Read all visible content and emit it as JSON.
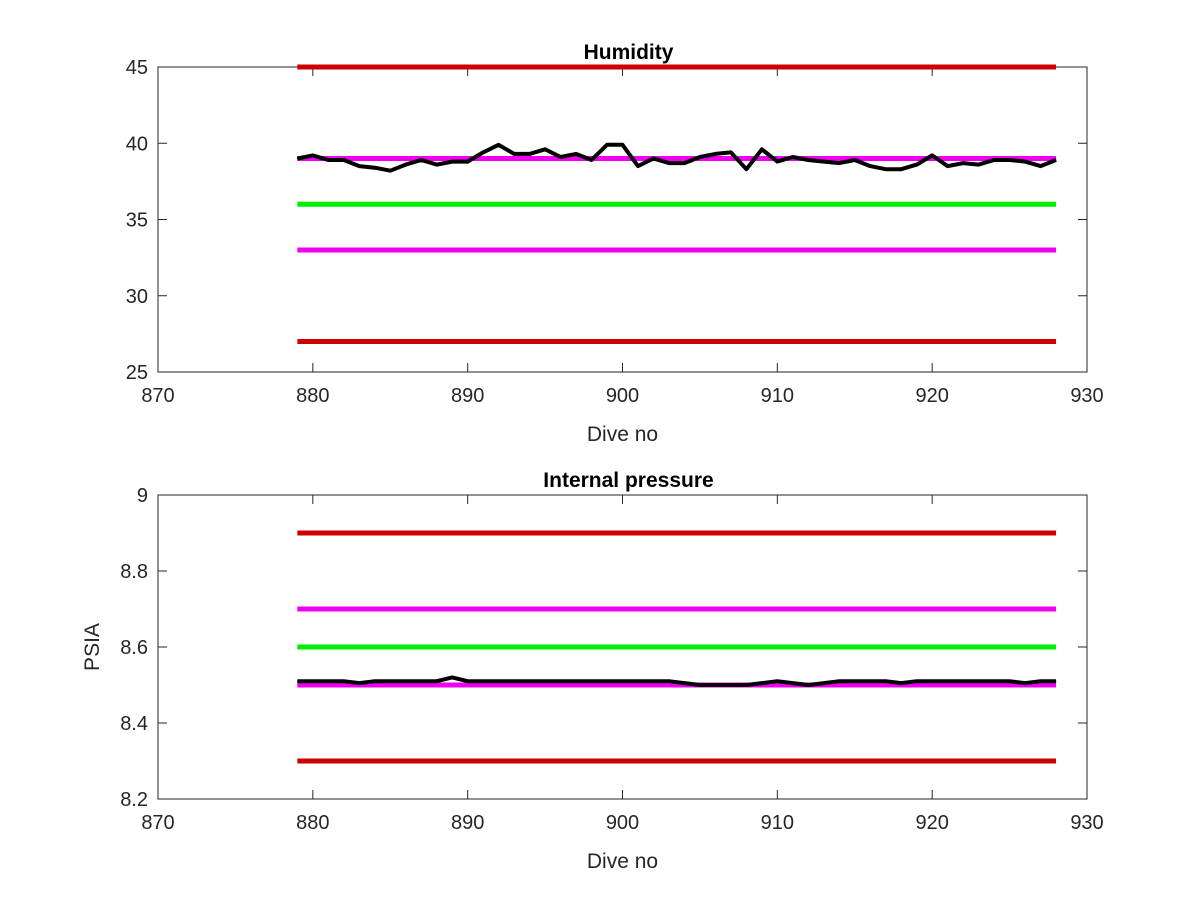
{
  "chart_data": [
    {
      "type": "line",
      "title": "Humidity",
      "xlabel": "Dive no",
      "ylabel": "",
      "xlim": [
        870,
        930
      ],
      "ylim": [
        25,
        45
      ],
      "xticks": [
        "870",
        "880",
        "890",
        "900",
        "910",
        "920",
        "930"
      ],
      "yticks": [
        "25",
        "30",
        "35",
        "40",
        "45"
      ],
      "grid": false,
      "legend": "none",
      "reference_lines": [
        {
          "y": 45,
          "x": [
            879,
            928
          ],
          "color": "#cc0000"
        },
        {
          "y": 39,
          "x": [
            879,
            928
          ],
          "color": "#ee00ee"
        },
        {
          "y": 36,
          "x": [
            879,
            928
          ],
          "color": "#00ee00"
        },
        {
          "y": 33,
          "x": [
            879,
            928
          ],
          "color": "#ee00ee"
        },
        {
          "y": 27,
          "x": [
            879,
            928
          ],
          "color": "#cc0000"
        }
      ],
      "series": [
        {
          "color": "#000000",
          "x": [
            879,
            880,
            881,
            882,
            883,
            884,
            885,
            886,
            887,
            888,
            889,
            890,
            891,
            892,
            893,
            894,
            895,
            896,
            897,
            898,
            899,
            900,
            901,
            902,
            903,
            904,
            905,
            906,
            907,
            908,
            909,
            910,
            911,
            912,
            913,
            914,
            915,
            916,
            917,
            918,
            919,
            920,
            921,
            922,
            923,
            924,
            925,
            926,
            927,
            928
          ],
          "y": [
            39.0,
            39.2,
            38.9,
            38.9,
            38.5,
            38.4,
            38.2,
            38.6,
            38.9,
            38.6,
            38.8,
            38.8,
            39.4,
            39.9,
            39.3,
            39.3,
            39.6,
            39.1,
            39.3,
            38.9,
            39.9,
            39.9,
            38.5,
            39.0,
            38.7,
            38.7,
            39.1,
            39.3,
            39.4,
            38.3,
            39.6,
            38.8,
            39.1,
            38.9,
            38.8,
            38.7,
            38.9,
            38.5,
            38.3,
            38.3,
            38.6,
            39.2,
            38.5,
            38.7,
            38.6,
            38.9,
            38.9,
            38.8,
            38.5,
            38.9
          ]
        }
      ]
    },
    {
      "type": "line",
      "title": "Internal pressure",
      "xlabel": "Dive no",
      "ylabel": "PSIA",
      "xlim": [
        870,
        930
      ],
      "ylim": [
        8.2,
        9.0
      ],
      "xticks": [
        "870",
        "880",
        "890",
        "900",
        "910",
        "920",
        "930"
      ],
      "yticks": [
        "8.2",
        "8.4",
        "8.6",
        "8.8",
        "9"
      ],
      "grid": false,
      "legend": "none",
      "reference_lines": [
        {
          "y": 8.9,
          "x": [
            879,
            928
          ],
          "color": "#cc0000"
        },
        {
          "y": 8.7,
          "x": [
            879,
            928
          ],
          "color": "#ee00ee"
        },
        {
          "y": 8.6,
          "x": [
            879,
            928
          ],
          "color": "#00ee00"
        },
        {
          "y": 8.5,
          "x": [
            879,
            928
          ],
          "color": "#ee00ee"
        },
        {
          "y": 8.3,
          "x": [
            879,
            928
          ],
          "color": "#cc0000"
        }
      ],
      "series": [
        {
          "color": "#000000",
          "x": [
            879,
            880,
            881,
            882,
            883,
            884,
            885,
            886,
            887,
            888,
            889,
            890,
            891,
            892,
            893,
            894,
            895,
            896,
            897,
            898,
            899,
            900,
            901,
            902,
            903,
            904,
            905,
            906,
            907,
            908,
            909,
            910,
            911,
            912,
            913,
            914,
            915,
            916,
            917,
            918,
            919,
            920,
            921,
            922,
            923,
            924,
            925,
            926,
            927,
            928
          ],
          "y": [
            8.51,
            8.51,
            8.51,
            8.51,
            8.505,
            8.51,
            8.51,
            8.51,
            8.51,
            8.51,
            8.52,
            8.51,
            8.51,
            8.51,
            8.51,
            8.51,
            8.51,
            8.51,
            8.51,
            8.51,
            8.51,
            8.51,
            8.51,
            8.51,
            8.51,
            8.505,
            8.5,
            8.5,
            8.5,
            8.5,
            8.505,
            8.51,
            8.505,
            8.5,
            8.505,
            8.51,
            8.51,
            8.51,
            8.51,
            8.505,
            8.51,
            8.51,
            8.51,
            8.51,
            8.51,
            8.51,
            8.51,
            8.505,
            8.51,
            8.51
          ]
        }
      ]
    }
  ]
}
